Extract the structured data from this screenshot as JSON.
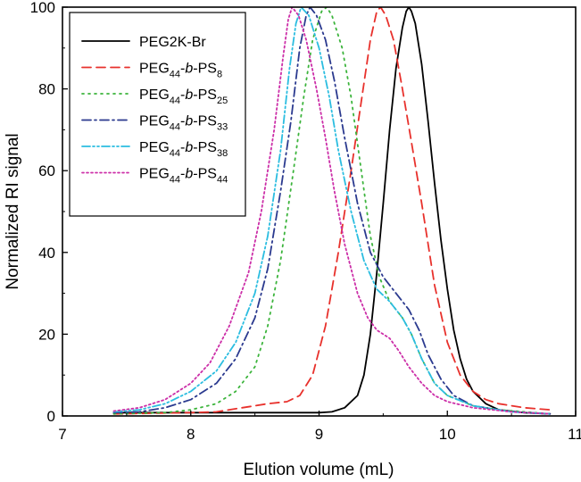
{
  "chart_data": {
    "type": "line",
    "xlabel": "Elution volume (mL)",
    "ylabel": "Normalized RI signal",
    "xlim": [
      7,
      11
    ],
    "ylim": [
      0,
      100
    ],
    "x_ticks": [
      "7",
      "8",
      "9",
      "10",
      "11"
    ],
    "y_ticks": [
      "0",
      "20",
      "40",
      "60",
      "80",
      "100"
    ],
    "grid": false,
    "legend_position": "top-left",
    "series": [
      {
        "name": "PEG2K-Br",
        "legend": {
          "main": "PEG2K-Br",
          "sub1": "",
          "italic": "",
          "mid": "",
          "sub2": ""
        },
        "color": "#000000",
        "dash": "solid",
        "points": [
          [
            7.4,
            0.8
          ],
          [
            8.0,
            0.8
          ],
          [
            8.5,
            0.8
          ],
          [
            9.0,
            0.8
          ],
          [
            9.1,
            1
          ],
          [
            9.2,
            2
          ],
          [
            9.3,
            5
          ],
          [
            9.35,
            10
          ],
          [
            9.4,
            20
          ],
          [
            9.45,
            35
          ],
          [
            9.5,
            52
          ],
          [
            9.55,
            70
          ],
          [
            9.6,
            85
          ],
          [
            9.65,
            95
          ],
          [
            9.68,
            99
          ],
          [
            9.7,
            100
          ],
          [
            9.72,
            99
          ],
          [
            9.75,
            96
          ],
          [
            9.8,
            86
          ],
          [
            9.85,
            72
          ],
          [
            9.9,
            57
          ],
          [
            9.95,
            43
          ],
          [
            10.0,
            31
          ],
          [
            10.05,
            21
          ],
          [
            10.1,
            14
          ],
          [
            10.15,
            9
          ],
          [
            10.2,
            6
          ],
          [
            10.3,
            3
          ],
          [
            10.4,
            1.5
          ],
          [
            10.6,
            0.8
          ],
          [
            10.8,
            0.5
          ]
        ]
      },
      {
        "name": "PEG44-b-PS8",
        "legend": {
          "main": "PEG",
          "sub1": "44",
          "italic": "b",
          "mid": "PS",
          "sub2": "8"
        },
        "color": "#e8312c",
        "dash": "10,6",
        "points": [
          [
            7.4,
            0.5
          ],
          [
            8.0,
            0.8
          ],
          [
            8.2,
            1
          ],
          [
            8.4,
            2
          ],
          [
            8.5,
            2.5
          ],
          [
            8.6,
            3
          ],
          [
            8.75,
            3.5
          ],
          [
            8.85,
            5
          ],
          [
            8.95,
            10
          ],
          [
            9.05,
            22
          ],
          [
            9.15,
            40
          ],
          [
            9.25,
            60
          ],
          [
            9.32,
            75
          ],
          [
            9.4,
            92
          ],
          [
            9.45,
            99
          ],
          [
            9.48,
            100
          ],
          [
            9.52,
            98
          ],
          [
            9.58,
            92
          ],
          [
            9.65,
            80
          ],
          [
            9.72,
            67
          ],
          [
            9.8,
            52
          ],
          [
            9.85,
            42
          ],
          [
            9.9,
            32
          ],
          [
            10.0,
            18
          ],
          [
            10.1,
            10
          ],
          [
            10.2,
            6
          ],
          [
            10.3,
            4
          ],
          [
            10.4,
            3
          ],
          [
            10.6,
            2
          ],
          [
            10.8,
            1.5
          ]
        ]
      },
      {
        "name": "PEG44-b-PS25",
        "legend": {
          "main": "PEG",
          "sub1": "44",
          "italic": "b",
          "mid": "PS",
          "sub2": "25"
        },
        "color": "#3cb43c",
        "dash": "2,5",
        "points": [
          [
            7.4,
            0.5
          ],
          [
            7.8,
            0.8
          ],
          [
            8.0,
            1.5
          ],
          [
            8.2,
            3
          ],
          [
            8.35,
            6
          ],
          [
            8.5,
            12
          ],
          [
            8.6,
            22
          ],
          [
            8.7,
            38
          ],
          [
            8.8,
            60
          ],
          [
            8.88,
            78
          ],
          [
            8.95,
            92
          ],
          [
            9.02,
            99
          ],
          [
            9.06,
            100
          ],
          [
            9.1,
            98
          ],
          [
            9.18,
            90
          ],
          [
            9.25,
            78
          ],
          [
            9.32,
            62
          ],
          [
            9.4,
            44
          ],
          [
            9.47,
            34
          ],
          [
            9.55,
            28
          ],
          [
            9.65,
            24
          ],
          [
            9.72,
            20
          ],
          [
            9.8,
            14
          ],
          [
            9.9,
            8
          ],
          [
            10.0,
            5
          ],
          [
            10.2,
            2.5
          ],
          [
            10.4,
            1.5
          ],
          [
            10.8,
            0.5
          ]
        ]
      },
      {
        "name": "PEG44-b-PS33",
        "legend": {
          "main": "PEG",
          "sub1": "44",
          "italic": "b",
          "mid": "PS",
          "sub2": "33"
        },
        "color": "#2b3a8f",
        "dash": "10,4,2,4",
        "points": [
          [
            7.4,
            0.8
          ],
          [
            7.6,
            1
          ],
          [
            7.8,
            2
          ],
          [
            8.0,
            4
          ],
          [
            8.2,
            8
          ],
          [
            8.35,
            14
          ],
          [
            8.5,
            24
          ],
          [
            8.6,
            36
          ],
          [
            8.7,
            55
          ],
          [
            8.78,
            72
          ],
          [
            8.85,
            90
          ],
          [
            8.9,
            98
          ],
          [
            8.93,
            100
          ],
          [
            8.98,
            98
          ],
          [
            9.05,
            92
          ],
          [
            9.12,
            82
          ],
          [
            9.2,
            68
          ],
          [
            9.3,
            52
          ],
          [
            9.4,
            40
          ],
          [
            9.5,
            34
          ],
          [
            9.6,
            30
          ],
          [
            9.7,
            26
          ],
          [
            9.78,
            21
          ],
          [
            9.85,
            15
          ],
          [
            9.95,
            9
          ],
          [
            10.05,
            5
          ],
          [
            10.2,
            2.5
          ],
          [
            10.5,
            1
          ],
          [
            10.8,
            0.5
          ]
        ]
      },
      {
        "name": "PEG44-b-PS38",
        "legend": {
          "main": "PEG",
          "sub1": "44",
          "italic": "b",
          "mid": "PS",
          "sub2": "38"
        },
        "color": "#2bbde0",
        "dash": "9,3,2,3,2,3",
        "points": [
          [
            7.4,
            1
          ],
          [
            7.6,
            1.5
          ],
          [
            7.8,
            3
          ],
          [
            8.0,
            6
          ],
          [
            8.2,
            11
          ],
          [
            8.35,
            18
          ],
          [
            8.5,
            30
          ],
          [
            8.6,
            44
          ],
          [
            8.7,
            65
          ],
          [
            8.77,
            85
          ],
          [
            8.82,
            96
          ],
          [
            8.86,
            100
          ],
          [
            8.92,
            98
          ],
          [
            9.0,
            90
          ],
          [
            9.08,
            78
          ],
          [
            9.15,
            65
          ],
          [
            9.25,
            50
          ],
          [
            9.35,
            38
          ],
          [
            9.45,
            31
          ],
          [
            9.55,
            28
          ],
          [
            9.65,
            24
          ],
          [
            9.72,
            20
          ],
          [
            9.8,
            14
          ],
          [
            9.9,
            8
          ],
          [
            10.0,
            5
          ],
          [
            10.2,
            2.5
          ],
          [
            10.5,
            1
          ],
          [
            10.8,
            0.5
          ]
        ]
      },
      {
        "name": "PEG44-b-PS44",
        "legend": {
          "main": "PEG",
          "sub1": "44",
          "italic": "b",
          "mid": "PS",
          "sub2": "44"
        },
        "color": "#cc2fa8",
        "dash": "2,3",
        "points": [
          [
            7.4,
            1.2
          ],
          [
            7.6,
            2
          ],
          [
            7.8,
            4
          ],
          [
            8.0,
            8
          ],
          [
            8.15,
            13
          ],
          [
            8.3,
            22
          ],
          [
            8.45,
            35
          ],
          [
            8.55,
            50
          ],
          [
            8.65,
            70
          ],
          [
            8.72,
            88
          ],
          [
            8.76,
            97
          ],
          [
            8.79,
            100
          ],
          [
            8.84,
            98
          ],
          [
            8.9,
            92
          ],
          [
            8.98,
            80
          ],
          [
            9.05,
            68
          ],
          [
            9.12,
            55
          ],
          [
            9.2,
            42
          ],
          [
            9.3,
            30
          ],
          [
            9.38,
            24
          ],
          [
            9.45,
            21
          ],
          [
            9.55,
            19
          ],
          [
            9.62,
            16
          ],
          [
            9.7,
            12
          ],
          [
            9.8,
            8
          ],
          [
            9.9,
            5
          ],
          [
            10.0,
            3.5
          ],
          [
            10.2,
            2
          ],
          [
            10.5,
            1
          ],
          [
            10.8,
            0.5
          ]
        ]
      }
    ]
  }
}
